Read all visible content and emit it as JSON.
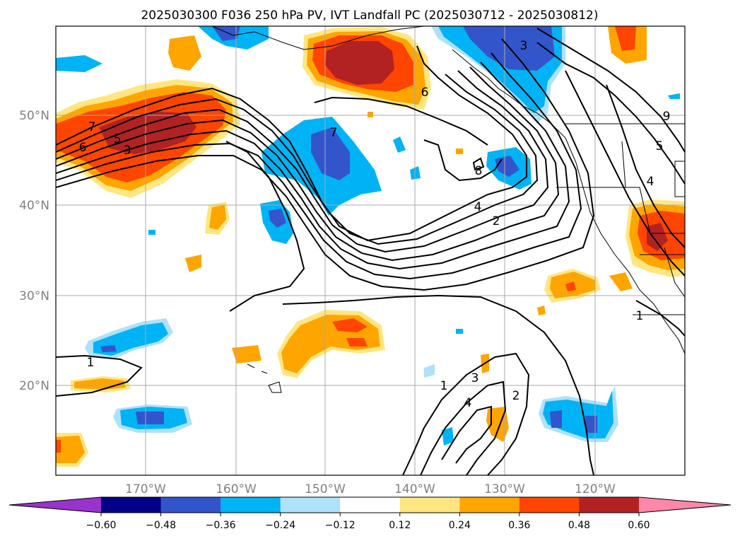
{
  "title": "2025030300 F036 250 hPa PV, IVT Landfall PC (2025030712 - 2025030812)",
  "map": {
    "lon_labels": [
      "170°W",
      "160°W",
      "150°W",
      "140°W",
      "130°W",
      "120°W"
    ],
    "lat_labels": [
      "50°N",
      "40°N",
      "30°N",
      "20°N"
    ]
  },
  "colorbar": {
    "tick_labels": [
      "−0.60",
      "−0.48",
      "−0.36",
      "−0.24",
      "−0.12",
      "0.12",
      "0.24",
      "0.36",
      "0.48",
      "0.60"
    ],
    "colors": [
      "#9933cc",
      "#000088",
      "#3355cc",
      "#00b3f5",
      "#aee1fa",
      "#ffffff",
      "#ffe680",
      "#ffa500",
      "#ff4500",
      "#b22222",
      "#ff88aa"
    ]
  },
  "contour_labels": {
    "c7a": "7",
    "c5a": "5",
    "c3a": "3",
    "c6a": "6",
    "c7b": "7",
    "c6b": "6",
    "c3b": "3",
    "c8": "8",
    "c4a": "4",
    "c2a": "2",
    "c9": "9",
    "c5b": "5",
    "c4b": "4",
    "c1a": "1",
    "c1b": "1",
    "c1c": "1",
    "c3c": "3",
    "c4c": "4",
    "c2b": "2"
  }
}
